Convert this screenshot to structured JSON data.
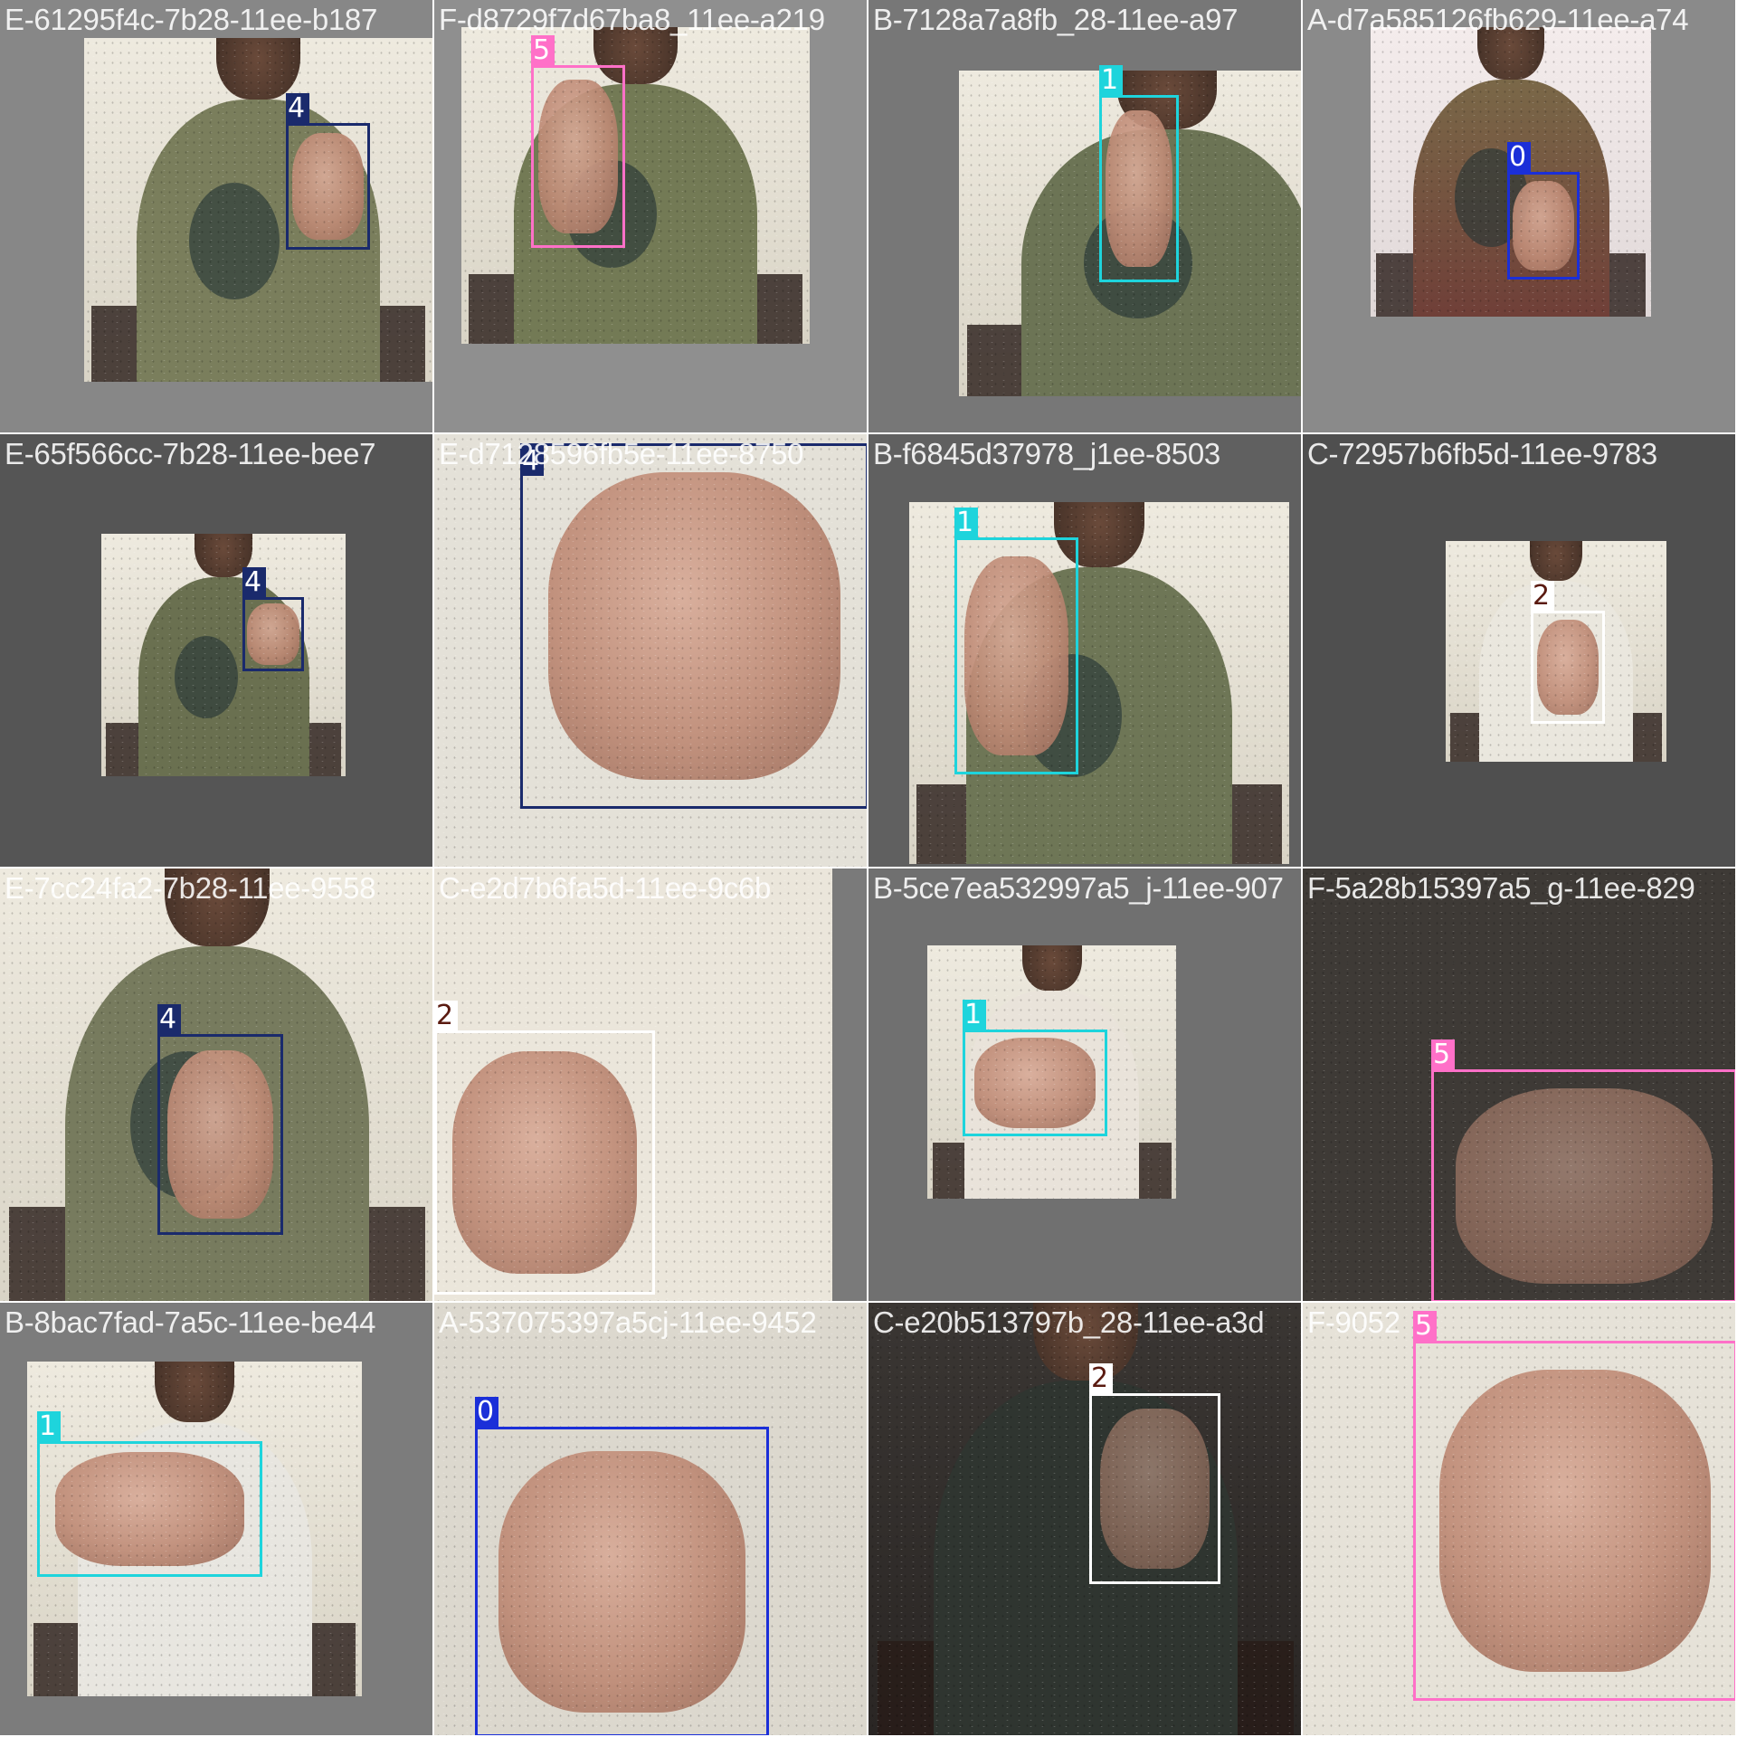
{
  "mosaic": {
    "tiles": [
      {
        "filename": "E-61295f4c-7b28-11ee-b187",
        "scene": "green-shirt",
        "boxes": [
          {
            "class_id": "4",
            "color": "#1a2a6c",
            "label_text_color": "#ffffff"
          }
        ]
      },
      {
        "filename": "F-d8729f7d67ba8_11ee-a219",
        "scene": "green-shirt",
        "boxes": [
          {
            "class_id": "5",
            "color": "#ff70c8",
            "label_text_color": "#ffffff"
          }
        ]
      },
      {
        "filename": "B-7128a7a8fb_28-11ee-a97",
        "scene": "green-shirt",
        "boxes": [
          {
            "class_id": "1",
            "color": "#1ed4dc",
            "label_text_color": "#ffffff"
          }
        ]
      },
      {
        "filename": "A-d7a585126fb629-11ee-a74",
        "scene": "green-shirt-red",
        "boxes": [
          {
            "class_id": "0",
            "color": "#1b2fd8",
            "label_text_color": "#ffffff"
          }
        ]
      },
      {
        "filename": "E-65f566cc-7b28-11ee-bee7",
        "scene": "green-shirt",
        "boxes": [
          {
            "class_id": "4",
            "color": "#1a2a6c",
            "label_text_color": "#ffffff"
          }
        ]
      },
      {
        "filename": "E-d7128596fb5e-11ee-8750",
        "scene": "closeup-white",
        "boxes": [
          {
            "class_id": "4",
            "color": "#1a2a6c",
            "label_text_color": "#ffffff"
          }
        ]
      },
      {
        "filename": "B-f6845d37978_j1ee-8503",
        "scene": "green-shirt",
        "boxes": [
          {
            "class_id": "1",
            "color": "#1ed4dc",
            "label_text_color": "#ffffff"
          }
        ]
      },
      {
        "filename": "C-72957b6fb5d-11ee-9783",
        "scene": "white-shirt",
        "boxes": [
          {
            "class_id": "2",
            "color": "#ffffff",
            "label_text_color": "#5a1a10"
          }
        ]
      },
      {
        "filename": "E-7cc24fa2-7b28-11ee-9558",
        "scene": "green-shirt-dim",
        "boxes": [
          {
            "class_id": "4",
            "color": "#1a2a6c",
            "label_text_color": "#ffffff"
          }
        ]
      },
      {
        "filename": "C-e2d7b6fa5d-11ee-9c6b",
        "scene": "closeup-white",
        "boxes": [
          {
            "class_id": "2",
            "color": "#ffffff",
            "label_text_color": "#5a1a10"
          }
        ]
      },
      {
        "filename": "B-5ce7ea532997a5_j-11ee-907",
        "scene": "white-shirt",
        "boxes": [
          {
            "class_id": "1",
            "color": "#1ed4dc",
            "label_text_color": "#ffffff"
          }
        ]
      },
      {
        "filename": "F-5a28b15397a5_g-11ee-829",
        "scene": "closeup-dark",
        "boxes": [
          {
            "class_id": "5",
            "color": "#ff70c8",
            "label_text_color": "#ffffff"
          }
        ]
      },
      {
        "filename": "B-8bac7fad-7a5c-11ee-be44",
        "scene": "white-shirt",
        "boxes": [
          {
            "class_id": "1",
            "color": "#1ed4dc",
            "label_text_color": "#ffffff"
          }
        ]
      },
      {
        "filename": "A-537075397a5cj-11ee-9452",
        "scene": "closeup-white",
        "boxes": [
          {
            "class_id": "0",
            "color": "#1b2fd8",
            "label_text_color": "#ffffff"
          }
        ]
      },
      {
        "filename": "C-e20b513797b_28-11ee-a3d",
        "scene": "dark-shirt",
        "boxes": [
          {
            "class_id": "2",
            "color": "#ffffff",
            "label_text_color": "#5a1a10"
          }
        ]
      },
      {
        "filename": "F-9052",
        "scene": "closeup-white",
        "boxes": [
          {
            "class_id": "5",
            "color": "#ff70c8",
            "label_text_color": "#ffffff"
          }
        ]
      }
    ]
  }
}
